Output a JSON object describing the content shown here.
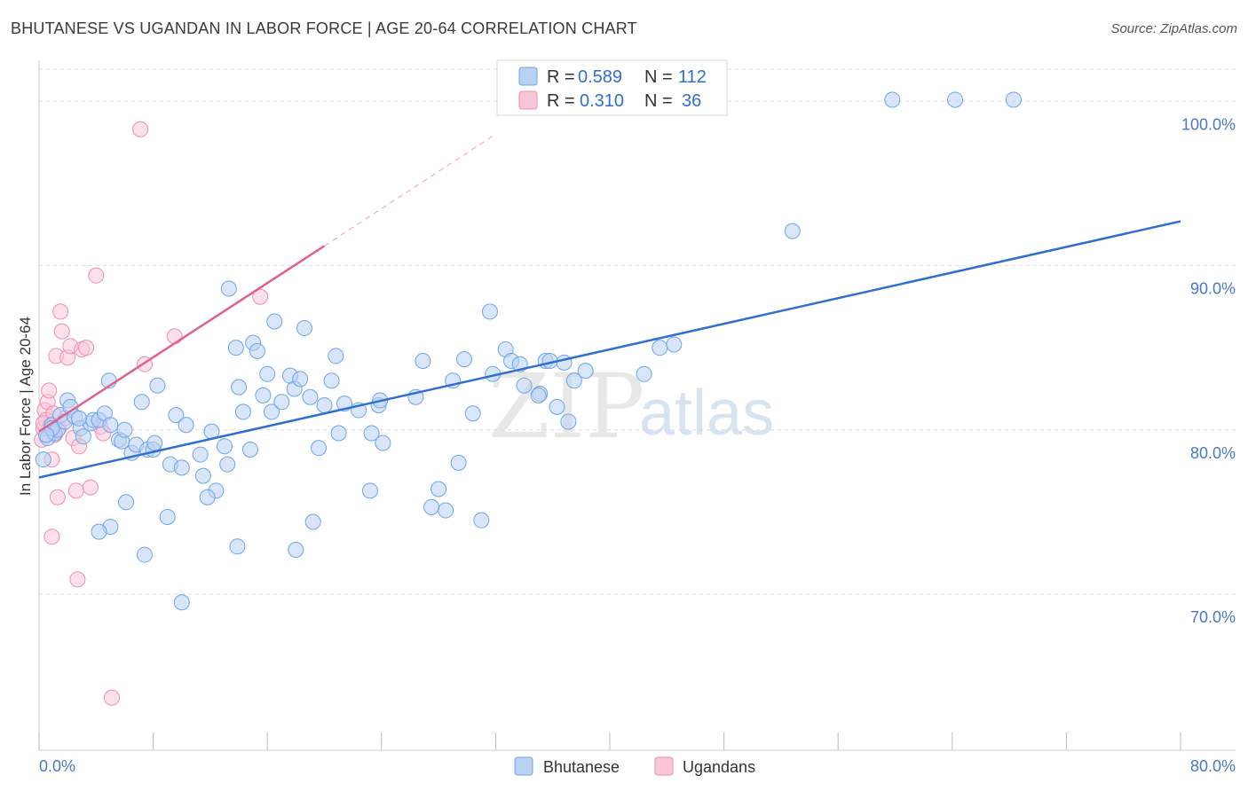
{
  "header": {
    "title": "BHUTANESE VS UGANDAN IN LABOR FORCE | AGE 20-64 CORRELATION CHART",
    "source": "Source: ZipAtlas.com"
  },
  "colors": {
    "blue": "#6fa4e8",
    "blue_fill": "#b9d2f4",
    "blue_line": "#2f6fd0",
    "pink": "#ee8fb0",
    "pink_fill": "#f9c6d8",
    "pink_line": "#e0608e",
    "axis_text": "#4a78c8"
  },
  "legend": {
    "r_label": "R =",
    "n_label": "N =",
    "rows": [
      {
        "r": "0.589",
        "n": "112"
      },
      {
        "r": "0.310",
        "n": "36"
      }
    ]
  },
  "watermark": {
    "zip": "ZIP",
    "atlas": "atlas"
  },
  "chart_data": {
    "type": "scatter",
    "title": "BHUTANESE VS UGANDAN IN LABOR FORCE | AGE 20-64 CORRELATION CHART",
    "xlabel": "",
    "ylabel": "In Labor Force | Age 20-64",
    "xlim": [
      0,
      80
    ],
    "ylim": [
      60.5,
      102.5
    ],
    "x_tick_labels": [
      "0.0%",
      "80.0%"
    ],
    "y_ticks": [
      70,
      80,
      90,
      100
    ],
    "y_tick_labels": [
      "70.0%",
      "80.0%",
      "90.0%",
      "100.0%"
    ],
    "grid": true,
    "legend_placement": "top-center",
    "series": [
      {
        "name": "Bhutanese",
        "color": "#6fa4e8",
        "points": [
          [
            0.3,
            78.2
          ],
          [
            0.6,
            79.5
          ],
          [
            0.9,
            80.3
          ],
          [
            1.1,
            79.8
          ],
          [
            1.3,
            80.0
          ],
          [
            1.5,
            80.9
          ],
          [
            1.8,
            80.5
          ],
          [
            2.0,
            81.8
          ],
          [
            2.2,
            81.4
          ],
          [
            2.5,
            80.8
          ],
          [
            2.9,
            80.1
          ],
          [
            3.1,
            79.6
          ],
          [
            3.6,
            80.4
          ],
          [
            3.8,
            80.6
          ],
          [
            4.2,
            80.6
          ],
          [
            4.6,
            81.0
          ],
          [
            4.9,
            83.0
          ],
          [
            5.0,
            80.3
          ],
          [
            5.6,
            79.4
          ],
          [
            5.8,
            79.3
          ],
          [
            6.0,
            80.0
          ],
          [
            6.5,
            78.6
          ],
          [
            6.8,
            79.1
          ],
          [
            7.2,
            81.7
          ],
          [
            7.6,
            78.8
          ],
          [
            8.0,
            78.8
          ],
          [
            8.1,
            79.2
          ],
          [
            8.3,
            82.7
          ],
          [
            9.2,
            77.9
          ],
          [
            9.6,
            80.9
          ],
          [
            10.0,
            77.7
          ],
          [
            10.3,
            80.3
          ],
          [
            11.3,
            78.5
          ],
          [
            11.5,
            77.2
          ],
          [
            12.1,
            79.9
          ],
          [
            12.4,
            76.3
          ],
          [
            13.0,
            79.0
          ],
          [
            13.2,
            77.9
          ],
          [
            13.3,
            88.6
          ],
          [
            13.8,
            85.0
          ],
          [
            14.0,
            82.6
          ],
          [
            14.3,
            81.1
          ],
          [
            14.8,
            78.8
          ],
          [
            15.0,
            85.3
          ],
          [
            15.3,
            84.8
          ],
          [
            15.7,
            82.1
          ],
          [
            16.0,
            83.4
          ],
          [
            16.3,
            81.1
          ],
          [
            16.5,
            86.6
          ],
          [
            17.0,
            81.7
          ],
          [
            17.6,
            83.3
          ],
          [
            17.9,
            82.5
          ],
          [
            18.3,
            83.1
          ],
          [
            18.6,
            86.2
          ],
          [
            19.0,
            82.0
          ],
          [
            19.6,
            78.9
          ],
          [
            20.0,
            81.5
          ],
          [
            20.5,
            83.0
          ],
          [
            20.8,
            84.5
          ],
          [
            21.0,
            79.8
          ],
          [
            21.4,
            81.6
          ],
          [
            22.4,
            81.2
          ],
          [
            23.3,
            79.8
          ],
          [
            23.8,
            81.5
          ],
          [
            23.9,
            81.8
          ],
          [
            24.1,
            79.2
          ],
          [
            26.4,
            82.0
          ],
          [
            26.9,
            84.2
          ],
          [
            28.0,
            76.4
          ],
          [
            28.5,
            75.1
          ],
          [
            29.0,
            83.0
          ],
          [
            29.4,
            78.0
          ],
          [
            29.8,
            84.3
          ],
          [
            30.4,
            81.0
          ],
          [
            31.8,
            83.4
          ],
          [
            32.7,
            84.9
          ],
          [
            33.1,
            84.2
          ],
          [
            33.7,
            84.0
          ],
          [
            34.0,
            82.7
          ],
          [
            35.1,
            82.2
          ],
          [
            35.5,
            84.2
          ],
          [
            35.8,
            84.2
          ],
          [
            36.3,
            81.4
          ],
          [
            36.8,
            84.1
          ],
          [
            37.1,
            80.5
          ],
          [
            37.5,
            83.0
          ],
          [
            38.3,
            83.6
          ],
          [
            42.4,
            83.4
          ],
          [
            43.5,
            85.0
          ],
          [
            44.5,
            85.2
          ],
          [
            6.1,
            75.6
          ],
          [
            5.0,
            74.1
          ],
          [
            9.0,
            74.7
          ],
          [
            11.8,
            75.9
          ],
          [
            4.2,
            73.8
          ],
          [
            7.4,
            72.4
          ],
          [
            10.0,
            69.5
          ],
          [
            13.9,
            72.9
          ],
          [
            18.0,
            72.7
          ],
          [
            19.2,
            74.4
          ],
          [
            23.2,
            76.3
          ],
          [
            27.5,
            75.3
          ],
          [
            31.0,
            74.5
          ],
          [
            31.6,
            87.2
          ],
          [
            35.0,
            82.1
          ],
          [
            52.8,
            92.1
          ],
          [
            59.8,
            100.1
          ],
          [
            64.2,
            100.1
          ],
          [
            68.3,
            100.1
          ],
          [
            0.9,
            80.1
          ],
          [
            0.5,
            79.7
          ],
          [
            2.8,
            80.7
          ]
        ],
        "trendline": {
          "x": [
            0,
            80
          ],
          "y": [
            77.1,
            92.7
          ]
        }
      },
      {
        "name": "Ugandans",
        "color": "#ee8fb0",
        "points": [
          [
            0.2,
            79.4
          ],
          [
            0.3,
            80.1
          ],
          [
            0.4,
            81.2
          ],
          [
            0.5,
            80.6
          ],
          [
            0.6,
            81.7
          ],
          [
            0.7,
            82.4
          ],
          [
            0.8,
            80.3
          ],
          [
            0.9,
            78.2
          ],
          [
            1.0,
            79.9
          ],
          [
            1.1,
            79.7
          ],
          [
            1.2,
            84.5
          ],
          [
            1.3,
            75.9
          ],
          [
            1.4,
            80.1
          ],
          [
            1.5,
            87.2
          ],
          [
            1.6,
            86.0
          ],
          [
            1.8,
            80.7
          ],
          [
            2.0,
            84.4
          ],
          [
            2.2,
            85.1
          ],
          [
            2.4,
            79.5
          ],
          [
            2.6,
            76.3
          ],
          [
            2.8,
            79.0
          ],
          [
            3.0,
            84.9
          ],
          [
            3.3,
            85.0
          ],
          [
            3.6,
            76.5
          ],
          [
            4.0,
            89.4
          ],
          [
            4.3,
            80.2
          ],
          [
            5.1,
            63.7
          ],
          [
            7.1,
            98.3
          ],
          [
            7.4,
            84.0
          ],
          [
            9.5,
            85.7
          ],
          [
            15.5,
            88.1
          ],
          [
            0.9,
            73.5
          ],
          [
            2.7,
            70.9
          ],
          [
            4.5,
            79.8
          ],
          [
            1.0,
            81.0
          ],
          [
            0.3,
            80.4
          ]
        ],
        "trendline": {
          "x": [
            0,
            20
          ],
          "y": [
            79.9,
            91.2
          ],
          "dashed_extension": {
            "x": [
              20,
              32
            ],
            "y": [
              91.2,
              98.0
            ]
          }
        }
      }
    ]
  },
  "bottom_legend": [
    {
      "label": "Bhutanese"
    },
    {
      "label": "Ugandans"
    }
  ]
}
